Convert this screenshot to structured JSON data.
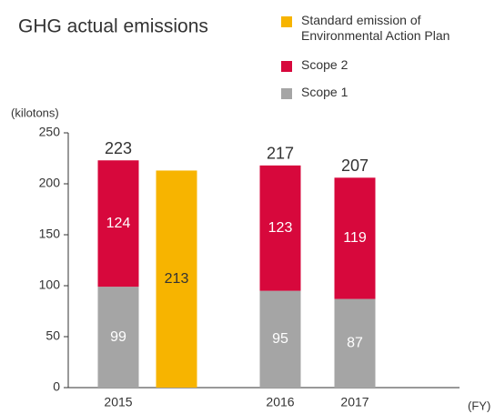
{
  "chart_data": {
    "type": "bar",
    "stacked": true,
    "title": "GHG actual emissions",
    "y_label": "(kilotons)",
    "x_label": "(FY)",
    "categories": [
      "2015",
      null,
      "2016",
      "2017"
    ],
    "series": [
      {
        "name": "Scope 1",
        "color": "#a5a5a5",
        "values": [
          99,
          null,
          95,
          87
        ]
      },
      {
        "name": "Scope 2",
        "color": "#d7083c",
        "values": [
          124,
          null,
          123,
          119
        ]
      },
      {
        "name": "Standard emission of Environmental Action Plan",
        "color": "#f7b400",
        "values": [
          null,
          213,
          null,
          null
        ]
      }
    ],
    "totals": [
      223,
      null,
      217,
      207
    ],
    "ylim": [
      0,
      250
    ],
    "yticks": [
      0,
      50,
      100,
      150,
      200,
      250
    ]
  }
}
